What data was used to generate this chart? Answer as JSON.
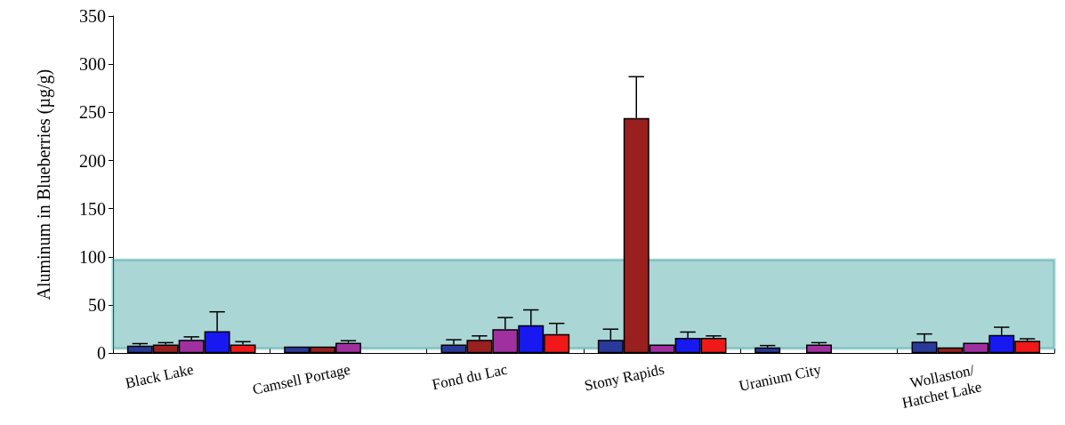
{
  "chart_data": {
    "type": "bar",
    "ylabel": "Aluminum in Blueberries (µg/g)",
    "categories": [
      "Black Lake",
      "Camsell Portage",
      "Fond du Lac",
      "Stony Rapids",
      "Uranium City",
      "Wollaston/ Hatchet Lake"
    ],
    "series": [
      {
        "color": "#2a3a9a",
        "values": [
          8,
          7,
          9,
          14,
          6,
          12
        ],
        "errors": [
          2,
          null,
          5,
          11,
          2,
          8
        ]
      },
      {
        "color": "#9a2020",
        "values": [
          9,
          7,
          14,
          244,
          null,
          6
        ],
        "errors": [
          2,
          null,
          4,
          43,
          null,
          null
        ]
      },
      {
        "color": "#a030a0",
        "values": [
          14,
          11,
          25,
          9,
          9,
          11
        ],
        "errors": [
          3,
          2,
          12,
          null,
          2,
          null
        ]
      },
      {
        "color": "#1818f0",
        "values": [
          23,
          null,
          29,
          16,
          null,
          19
        ],
        "errors": [
          20,
          null,
          16,
          6,
          null,
          8
        ]
      },
      {
        "color": "#f01818",
        "values": [
          9,
          null,
          20,
          16,
          null,
          13
        ],
        "errors": [
          3,
          null,
          11,
          2,
          null,
          2
        ]
      }
    ],
    "ylim": [
      0,
      350
    ],
    "yticks": [
      0,
      50,
      100,
      150,
      200,
      250,
      300,
      350
    ],
    "grid": false,
    "bands": [
      {
        "axis": "y",
        "from": 5,
        "to": 97,
        "color": "#2a9898"
      }
    ]
  }
}
